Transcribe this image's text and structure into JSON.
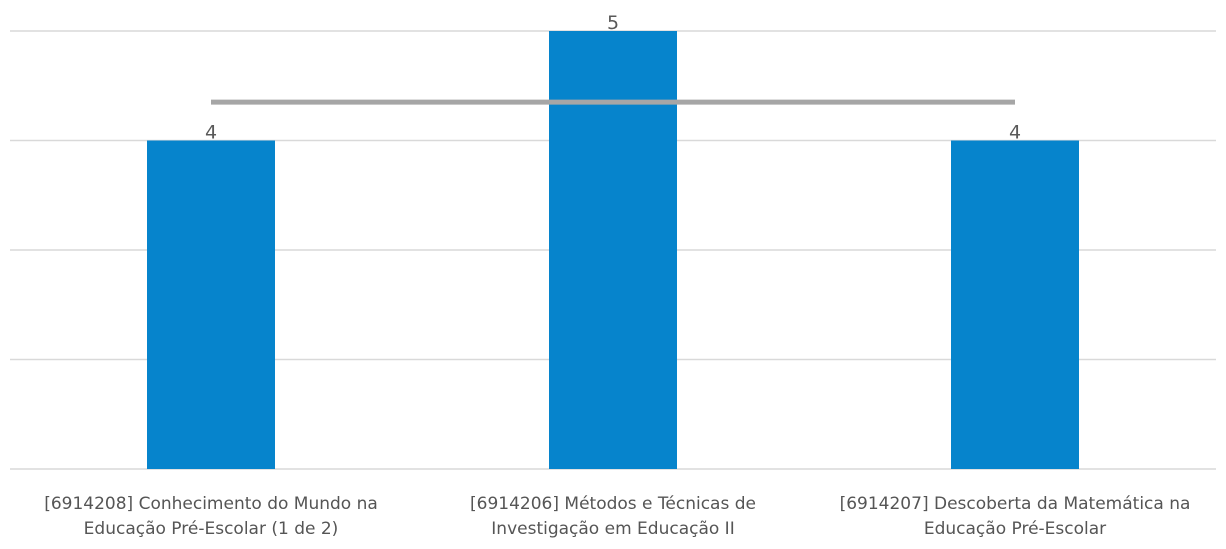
{
  "chart_data": {
    "type": "bar",
    "categories": [
      [
        "[6914208] Conhecimento do Mundo na",
        "Educação Pré-Escolar (1 de 2)"
      ],
      [
        "[6914206] Métodos e Técnicas de",
        "Investigação em Educação II"
      ],
      [
        "[6914207] Descoberta da Matemática na",
        "Educação Pré-Escolar"
      ]
    ],
    "series": [
      {
        "type": "bar",
        "values": [
          4,
          5,
          4
        ],
        "data_labels": [
          "4",
          "5",
          "4"
        ],
        "color": "#0684CC"
      },
      {
        "type": "line",
        "values": [
          4.35,
          4.35,
          4.35
        ],
        "color": "#A6A6A6"
      }
    ],
    "ylim": [
      1,
      5
    ],
    "gridlines": true,
    "legend": "none"
  }
}
